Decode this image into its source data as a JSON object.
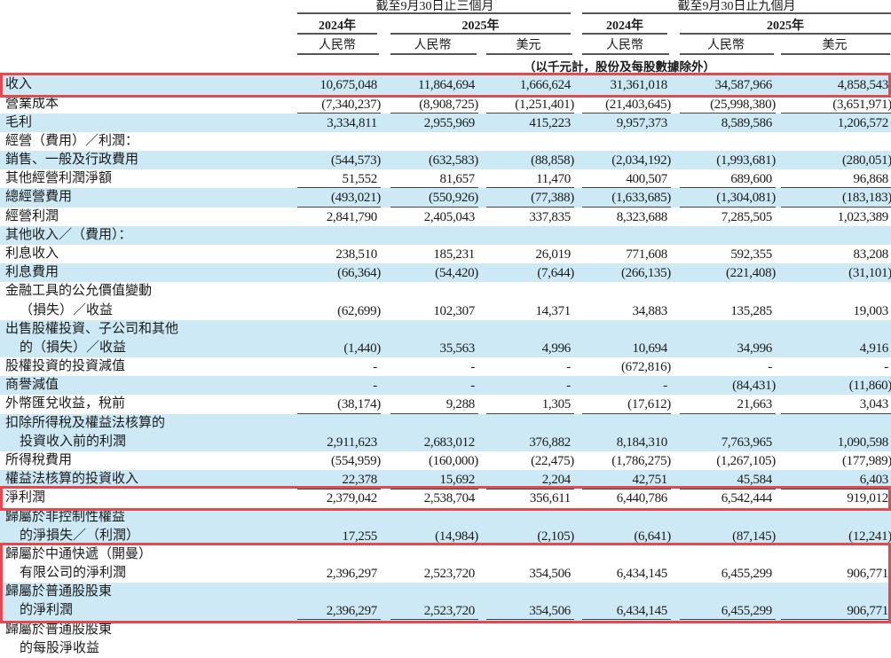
{
  "header": {
    "period_3m": "截至9月30日止三個月",
    "period_9m": "截至9月30日止九個月",
    "years": [
      "2024年",
      "2025年",
      "2024年",
      "2025年"
    ],
    "currencies": [
      "人民幣",
      "人民幣",
      "美元",
      "人民幣",
      "人民幣",
      "美元"
    ],
    "unit_note": "（以千元計，股份及每股數據除外）"
  },
  "rows": [
    {
      "label": [
        "收入"
      ],
      "values": [
        "10,675,048",
        "11,864,694",
        "1,666,624",
        "31,361,018",
        "34,587,966",
        "4,858,543"
      ],
      "highlight": true
    },
    {
      "label": [
        "營業成本"
      ],
      "values": [
        "(7,340,237)",
        "(8,908,725)",
        "(1,251,401)",
        "(21,403,645)",
        "(25,998,380)",
        "(3,651,971)"
      ],
      "underline": "single"
    },
    {
      "label": [
        "毛利"
      ],
      "values": [
        "3,334,811",
        "2,955,969",
        "415,223",
        "9,957,373",
        "8,589,586",
        "1,206,572"
      ]
    },
    {
      "label": [
        "經營（費用）／利潤："
      ],
      "values": []
    },
    {
      "label": [
        "銷售、一般及行政費用"
      ],
      "values": [
        "(544,573)",
        "(632,583)",
        "(88,858)",
        "(2,034,192)",
        "(1,993,681)",
        "(280,051)"
      ]
    },
    {
      "label": [
        "其他經營利潤淨額"
      ],
      "values": [
        "51,552",
        "81,657",
        "11,470",
        "400,507",
        "689,600",
        "96,868"
      ],
      "underline": "single"
    },
    {
      "label": [
        "總經營費用"
      ],
      "values": [
        "(493,021)",
        "(550,926)",
        "(77,388)",
        "(1,633,685)",
        "(1,304,081)",
        "(183,183)"
      ],
      "underline": "single"
    },
    {
      "label": [
        "經營利潤"
      ],
      "values": [
        "2,841,790",
        "2,405,043",
        "337,835",
        "8,323,688",
        "7,285,505",
        "1,023,389"
      ]
    },
    {
      "label": [
        "其他收入／（費用）："
      ],
      "values": []
    },
    {
      "label": [
        "利息收入"
      ],
      "values": [
        "238,510",
        "185,231",
        "26,019",
        "771,608",
        "592,355",
        "83,208"
      ]
    },
    {
      "label": [
        "利息費用"
      ],
      "values": [
        "(66,364)",
        "(54,420)",
        "(7,644)",
        "(266,135)",
        "(221,408)",
        "(31,101)"
      ]
    },
    {
      "label": [
        "金融工具的公允價值變動",
        "（損失）／收益"
      ],
      "values": [
        "(62,699)",
        "102,307",
        "14,371",
        "34,883",
        "135,285",
        "19,003"
      ]
    },
    {
      "label": [
        "出售股權投資、子公司和其他",
        "的（損失）／收益"
      ],
      "values": [
        "(1,440)",
        "35,563",
        "4,996",
        "10,694",
        "34,996",
        "4,916"
      ]
    },
    {
      "label": [
        "股權投資的投資減值"
      ],
      "values": [
        "-",
        "-",
        "-",
        "(672,816)",
        "-",
        "-"
      ]
    },
    {
      "label": [
        "商譽減值"
      ],
      "values": [
        "-",
        "-",
        "-",
        "-",
        "(84,431)",
        "(11,860)"
      ]
    },
    {
      "label": [
        "外幣匯兌收益，稅前"
      ],
      "values": [
        "(38,174)",
        "9,288",
        "1,305",
        "(17,612)",
        "21,663",
        "3,043"
      ],
      "underline": "single"
    },
    {
      "label": [
        "扣除所得稅及權益法核算的",
        "投資收入前的利潤"
      ],
      "values": [
        "2,911,623",
        "2,683,012",
        "376,882",
        "8,184,310",
        "7,763,965",
        "1,090,598"
      ]
    },
    {
      "label": [
        "所得稅費用"
      ],
      "values": [
        "(554,959)",
        "(160,000)",
        "(22,475)",
        "(1,786,275)",
        "(1,267,105)",
        "(177,989)"
      ]
    },
    {
      "label": [
        "權益法核算的投資收入"
      ],
      "values": [
        "22,378",
        "15,692",
        "2,204",
        "42,751",
        "45,584",
        "6,403"
      ],
      "underline": "single"
    },
    {
      "label": [
        "淨利潤"
      ],
      "values": [
        "2,379,042",
        "2,538,704",
        "356,611",
        "6,440,786",
        "6,542,444",
        "919,012"
      ],
      "highlight": true
    },
    {
      "label": [
        "歸屬於非控制性權益",
        "的淨損失／（利潤）"
      ],
      "values": [
        "17,255",
        "(14,984)",
        "(2,105)",
        "(6,641)",
        "(87,145)",
        "(12,241)"
      ],
      "underline": "single"
    },
    {
      "label": [
        "歸屬於中通快遞（開曼）",
        "有限公司的淨利潤"
      ],
      "values": [
        "2,396,297",
        "2,523,720",
        "354,506",
        "6,434,145",
        "6,455,299",
        "906,771"
      ],
      "highlight": true
    },
    {
      "label": [
        "歸屬於普通股股東",
        "的淨利潤"
      ],
      "values": [
        "2,396,297",
        "2,523,720",
        "354,506",
        "6,434,145",
        "6,455,299",
        "906,771"
      ],
      "underline": "double"
    },
    {
      "label": [
        "歸屬於普通股股東",
        "的每股淨收益"
      ],
      "values": []
    }
  ],
  "colors": {
    "stripe": "#cde9f6",
    "highlight_box": "#e04a50"
  }
}
